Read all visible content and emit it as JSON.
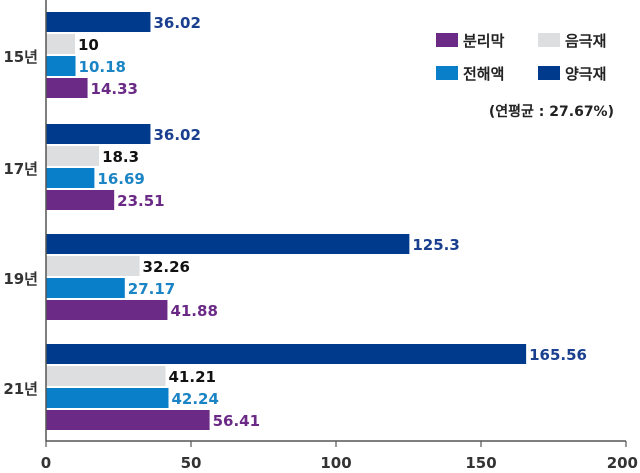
{
  "chart_data": {
    "type": "bar",
    "orientation": "horizontal",
    "categories": [
      "15년",
      "17년",
      "19년",
      "21년"
    ],
    "series": [
      {
        "name": "양극재",
        "color": "#003a8c",
        "label_color": "#1a3f8f",
        "values": [
          36.02,
          36.02,
          125.3,
          165.56
        ]
      },
      {
        "name": "음극재",
        "color": "#dcdedf",
        "label_color": "#111111",
        "values": [
          10,
          18.3,
          32.26,
          41.21
        ]
      },
      {
        "name": "전해액",
        "color": "#0a7fc9",
        "label_color": "#1b84c4",
        "values": [
          10.18,
          16.69,
          27.17,
          42.24
        ]
      },
      {
        "name": "분리막",
        "color": "#6a2a86",
        "label_color": "#6a2a86",
        "values": [
          14.33,
          23.51,
          41.88,
          56.41
        ]
      }
    ],
    "value_labels": [
      [
        "36.02",
        "10",
        "10.18",
        "14.33"
      ],
      [
        "36.02",
        "18.3",
        "16.69",
        "23.51"
      ],
      [
        "125.3",
        "32.26",
        "27.17",
        "41.88"
      ],
      [
        "165.56",
        "41.21",
        "42.24",
        "56.41"
      ]
    ],
    "x_ticks": [
      0,
      50,
      100,
      150,
      200
    ],
    "x_tick_labels": [
      "0",
      "50",
      "100",
      "150",
      "200"
    ],
    "xlim": [
      0,
      200
    ],
    "grid": false,
    "legend": {
      "placement": "top-right",
      "order": [
        "분리막",
        "음극재",
        "전해액",
        "양극재"
      ]
    },
    "annotation": "(연평균 : 27.67%)"
  }
}
